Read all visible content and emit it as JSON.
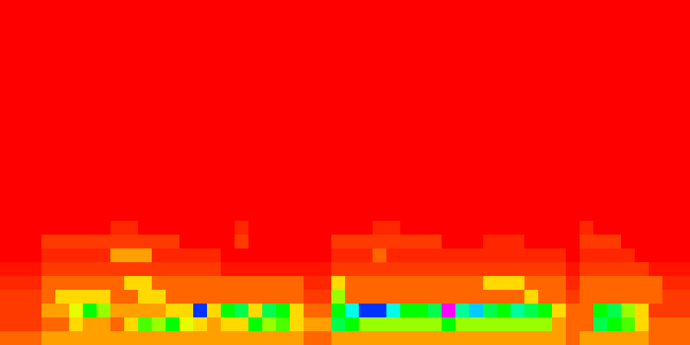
{
  "chart_data": {
    "type": "heatmap",
    "tick_labels": false,
    "zlim": [
      0,
      10
    ],
    "values": [
      [
        0,
        0,
        0,
        0,
        0,
        0,
        0,
        0,
        0,
        0,
        0,
        0,
        0,
        0,
        0,
        0,
        0,
        0,
        0,
        0,
        0,
        0,
        0,
        0,
        0,
        0,
        0,
        0,
        0,
        0,
        0,
        0,
        0,
        0,
        0,
        0,
        0,
        0,
        0,
        0,
        0,
        0,
        0,
        0,
        0,
        0,
        0,
        0,
        0,
        0
      ],
      [
        0,
        0,
        0,
        0,
        0,
        0,
        0,
        0,
        0,
        0,
        0,
        0,
        0,
        0,
        0,
        0,
        0,
        0,
        0,
        0,
        0,
        0,
        0,
        0,
        0,
        0,
        0,
        0,
        0,
        0,
        0,
        0,
        0,
        0,
        0,
        0,
        0,
        0,
        0,
        0,
        0,
        0,
        0,
        0,
        0,
        0,
        0,
        0,
        0,
        0
      ],
      [
        0,
        0,
        0,
        0,
        0,
        0,
        0,
        0,
        0,
        0,
        0,
        0,
        0,
        0,
        0,
        0,
        0,
        0,
        0,
        0,
        0,
        0,
        0,
        0,
        0,
        0,
        0,
        0,
        0,
        0,
        0,
        0,
        0,
        0,
        0,
        0,
        0,
        0,
        0,
        0,
        0,
        0,
        0,
        0,
        0,
        0,
        0,
        0,
        0,
        0
      ],
      [
        0,
        0,
        0,
        0,
        0,
        0,
        0,
        0,
        0,
        0,
        0,
        0,
        0,
        0,
        0,
        0,
        0,
        0,
        0,
        0,
        0,
        0,
        0,
        0,
        0,
        0,
        0,
        0,
        0,
        0,
        0,
        0,
        0,
        0,
        0,
        0,
        0,
        0,
        0,
        0,
        0,
        0,
        0,
        0,
        0,
        0,
        0,
        0,
        0,
        0
      ],
      [
        0,
        0,
        0,
        0,
        0,
        0,
        0,
        0,
        0,
        0,
        0,
        0,
        0,
        0,
        0,
        0,
        0,
        0,
        0,
        0,
        0,
        0,
        0,
        0,
        0,
        0,
        0,
        0,
        0,
        0,
        0,
        0,
        0,
        0,
        0,
        0,
        0,
        0,
        0,
        0,
        0,
        0,
        0,
        0,
        0,
        0,
        0,
        0,
        0,
        0
      ],
      [
        0,
        0,
        0,
        0,
        0,
        0,
        0,
        0,
        0,
        0,
        0,
        0,
        0,
        0,
        0,
        0,
        0,
        0,
        0,
        0,
        0,
        0,
        0,
        0,
        0,
        0,
        0,
        0,
        0,
        0,
        0,
        0,
        0,
        0,
        0,
        0,
        0,
        0,
        0,
        0,
        0,
        0,
        0,
        0,
        0,
        0,
        0,
        0,
        0,
        0
      ],
      [
        0,
        0,
        0,
        0,
        0,
        0,
        0,
        0,
        0,
        0,
        0,
        0,
        0,
        0,
        0,
        0,
        0,
        0,
        0,
        0,
        0,
        0,
        0,
        0,
        0,
        0,
        0,
        0,
        0,
        0,
        0,
        0,
        0,
        0,
        0,
        0,
        0,
        0,
        0,
        0,
        0,
        0,
        0,
        0,
        0,
        0,
        0,
        0,
        0,
        0
      ],
      [
        0,
        0,
        0,
        0,
        0,
        0,
        0,
        0,
        0,
        0,
        0,
        0,
        0,
        0,
        0,
        0,
        0,
        0,
        0,
        0,
        0,
        0,
        0,
        0,
        0,
        0,
        0,
        0,
        0,
        0,
        0,
        0,
        0,
        0,
        0,
        0,
        0,
        0,
        0,
        0,
        0,
        0,
        0,
        0,
        0,
        0,
        0,
        0,
        0,
        0
      ],
      [
        0,
        0,
        0,
        0,
        0,
        0,
        0,
        0,
        0,
        0,
        0,
        0,
        0,
        0,
        0,
        0,
        0,
        0,
        0,
        0,
        0,
        0,
        0,
        0,
        0,
        0,
        0,
        0,
        0,
        0,
        0,
        0,
        0,
        0,
        0,
        0,
        0,
        0,
        0,
        0,
        0,
        0,
        0,
        0,
        0,
        0,
        0,
        0,
        0,
        0
      ],
      [
        0,
        0,
        0,
        0,
        0,
        0,
        0,
        0,
        0,
        0,
        0,
        0,
        0,
        0,
        0,
        0,
        0,
        0,
        0,
        0,
        0,
        0,
        0,
        0,
        0,
        0,
        0,
        0,
        0,
        0,
        0,
        0,
        0,
        0,
        0,
        0,
        0,
        0,
        0,
        0,
        0,
        0,
        0,
        0,
        0,
        0,
        0,
        0,
        0,
        0
      ],
      [
        0,
        0,
        0,
        0,
        0,
        0,
        0,
        0,
        0,
        0,
        0,
        0,
        0,
        0,
        0,
        0,
        0,
        0,
        0,
        0,
        0,
        0,
        0,
        0,
        0,
        0,
        0,
        0,
        0,
        0,
        0,
        0,
        0,
        0,
        0,
        0,
        0,
        0,
        0,
        0,
        0,
        0,
        0,
        0,
        0,
        0,
        0,
        0,
        0,
        0
      ],
      [
        0,
        0,
        0,
        0,
        0,
        0,
        0,
        0,
        0,
        0,
        0,
        0,
        0,
        0,
        0,
        0,
        0,
        0,
        0,
        0,
        0,
        0,
        0,
        0,
        0,
        0,
        0,
        0,
        0,
        0,
        0,
        0,
        0,
        0,
        0,
        0,
        0,
        0,
        0,
        0,
        0,
        0,
        0,
        0,
        0,
        0,
        0,
        0,
        0,
        0
      ],
      [
        0,
        0,
        0,
        0,
        0,
        0,
        0,
        0,
        0,
        0,
        0,
        0,
        0,
        0,
        0,
        0,
        0,
        0,
        0,
        0,
        0,
        0,
        0,
        0,
        0,
        0,
        0,
        0,
        0,
        0,
        0,
        0,
        0,
        0,
        0,
        0,
        0,
        0,
        0,
        0,
        0,
        0,
        0,
        0,
        0,
        0,
        0,
        0,
        0,
        0
      ],
      [
        0,
        0,
        0,
        0,
        0,
        0,
        0,
        0,
        0,
        0,
        0,
        0,
        0,
        0,
        0,
        0,
        0,
        0,
        0,
        0,
        0,
        0,
        0,
        0,
        0,
        0,
        0,
        0,
        0,
        0,
        0,
        0,
        0,
        0,
        0,
        0,
        0,
        0,
        0,
        0,
        0,
        0,
        0,
        0,
        0,
        0,
        0,
        0,
        0,
        0
      ],
      [
        0,
        0,
        0,
        0,
        0,
        0,
        0,
        0,
        0,
        0,
        0,
        0,
        0,
        0,
        0,
        0,
        0,
        0,
        0,
        0,
        0,
        0,
        0,
        0,
        0,
        0,
        0,
        0,
        0,
        0,
        0,
        0,
        0,
        0,
        0,
        0,
        0,
        0,
        0,
        0,
        0,
        0,
        0,
        0,
        0,
        0,
        0,
        0,
        0,
        0
      ],
      [
        0,
        0,
        0,
        0,
        0,
        0,
        0,
        0,
        0,
        0,
        0,
        0,
        0,
        0,
        0,
        0,
        0,
        0,
        0,
        0,
        0,
        0,
        0,
        0,
        0,
        0,
        0,
        0,
        0,
        0,
        0,
        0,
        0,
        0,
        0,
        0,
        0,
        0,
        0,
        0,
        0,
        0,
        0,
        0,
        0,
        0,
        0,
        0,
        0,
        0
      ],
      [
        0,
        0,
        0,
        0,
        0,
        0,
        0,
        0,
        1,
        1,
        0,
        0,
        0,
        0,
        0,
        0,
        0,
        1,
        0,
        0,
        0,
        0,
        0,
        0,
        0,
        0,
        0,
        1,
        1,
        0,
        0,
        0,
        0,
        0,
        0,
        0,
        0,
        0,
        0,
        0,
        0,
        0,
        1,
        0,
        0,
        0,
        0,
        0,
        0,
        0
      ],
      [
        0,
        0,
        0,
        1.5,
        1.5,
        1.5,
        1.5,
        1.5,
        1.5,
        1.5,
        1.5,
        1.5,
        1.5,
        0,
        0,
        0,
        0,
        1.5,
        0,
        0,
        0,
        0,
        0,
        0,
        1.5,
        1.5,
        1.5,
        1.5,
        1.5,
        1.5,
        1.5,
        1.5,
        0,
        0,
        0,
        1,
        1,
        1,
        0,
        0,
        0,
        0,
        1.5,
        1.5,
        1.5,
        0,
        0,
        0,
        0,
        0
      ],
      [
        0,
        0,
        0,
        1,
        1,
        1,
        1,
        1,
        2.5,
        2.5,
        2.5,
        1,
        1,
        1,
        1,
        1,
        0,
        0,
        0,
        0,
        0,
        0,
        0,
        0,
        1,
        1,
        1,
        2,
        1,
        1,
        1,
        1,
        1,
        1,
        1,
        1,
        1,
        1,
        1,
        1,
        1,
        0,
        1,
        1,
        1,
        1,
        0,
        0,
        0,
        0
      ],
      [
        0.5,
        0.5,
        0.5,
        1.5,
        1.5,
        1.5,
        1.5,
        1.5,
        1.5,
        1.5,
        1.5,
        1.5,
        1.5,
        1.5,
        1.5,
        1.5,
        0.5,
        0.5,
        0.5,
        0.5,
        0.5,
        0.5,
        0.5,
        0.5,
        1.5,
        1.5,
        1.5,
        1.5,
        1.5,
        1.5,
        1.5,
        1.5,
        1.5,
        1.5,
        1.5,
        1.5,
        1.5,
        1.5,
        1.5,
        1.5,
        1.5,
        0.5,
        1.5,
        1.5,
        1.5,
        1.5,
        1.5,
        0.5,
        0.5,
        0.5
      ],
      [
        1,
        1,
        1,
        2,
        2,
        2,
        2,
        2,
        2,
        3,
        3,
        2,
        2,
        2,
        2,
        2,
        2,
        2,
        2,
        2,
        2,
        2,
        1,
        1,
        3,
        2,
        2,
        2,
        2,
        2,
        2,
        2,
        2,
        2,
        2,
        3,
        3,
        3,
        2,
        2,
        2,
        1,
        2,
        2,
        2,
        2,
        2,
        2,
        1,
        1
      ],
      [
        1.5,
        1.5,
        1.5,
        2,
        3,
        3,
        3,
        3,
        2,
        2,
        3,
        3,
        2,
        2,
        2,
        2,
        2,
        2,
        2,
        2,
        2,
        2,
        1.5,
        1.5,
        4,
        2,
        2,
        2,
        2,
        2,
        2,
        2,
        2,
        2,
        2,
        2,
        2,
        2,
        3,
        2,
        2,
        1.5,
        2,
        2,
        2,
        2,
        2,
        2,
        1.5,
        1.5
      ],
      [
        1.5,
        1.5,
        1.5,
        2.5,
        2.5,
        3.5,
        5,
        4,
        2.5,
        2.5,
        2.5,
        2.5,
        3,
        3,
        8,
        3,
        5,
        5.5,
        3,
        5.5,
        5,
        3,
        2,
        2,
        5,
        6.5,
        8,
        8,
        6.5,
        5,
        5,
        5.5,
        10,
        6,
        7,
        5.5,
        5,
        6,
        5.5,
        5,
        3,
        2,
        2,
        5,
        5.5,
        4,
        3,
        1.5,
        1.5,
        1.5
      ],
      [
        1.5,
        1.5,
        1.5,
        2,
        2,
        3,
        2.5,
        2.5,
        2,
        3,
        4.5,
        4,
        5,
        3.5,
        3,
        2.5,
        3,
        3,
        5,
        4,
        4.5,
        3,
        2.5,
        2.5,
        5.5,
        5,
        4,
        4,
        4,
        4,
        4,
        4,
        5,
        4,
        4,
        4,
        4,
        4,
        4,
        4,
        2.5,
        2,
        2,
        5.5,
        5,
        4.5,
        3,
        2,
        2,
        2
      ],
      [
        2,
        2,
        2,
        2.5,
        2.5,
        2.5,
        2.5,
        2.5,
        2.5,
        2.5,
        2.5,
        2.5,
        2.5,
        2.5,
        2.5,
        2.5,
        2.5,
        2.5,
        2.5,
        2.5,
        2.5,
        2.5,
        2,
        2,
        2.5,
        2.5,
        2.5,
        2.5,
        2.5,
        2.5,
        2.5,
        2.5,
        2.5,
        2.5,
        2.5,
        2.5,
        2.5,
        2.5,
        2.5,
        2.5,
        2.5,
        2,
        2.5,
        2.5,
        2.5,
        2.5,
        2.5,
        2,
        2,
        2
      ]
    ]
  }
}
